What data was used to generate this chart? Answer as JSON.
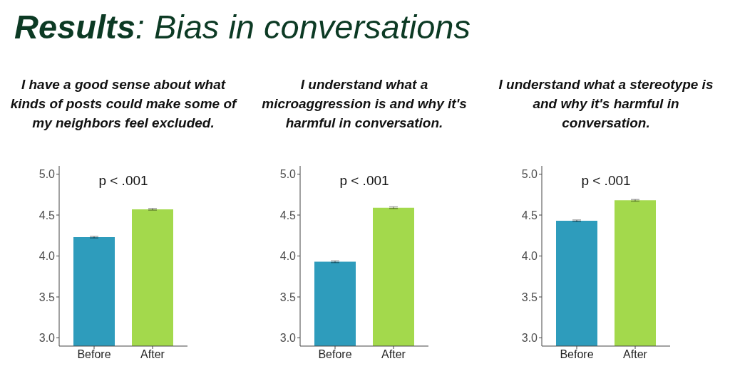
{
  "chart_data": [
    {
      "type": "bar",
      "title": "Results: Bias in conversations",
      "subtitle": "I have a good sense about what\nkinds of posts could make some of\nmy neighbors feel excluded.",
      "categories": [
        "Before",
        "After"
      ],
      "values": [
        4.23,
        4.57
      ],
      "errors": [
        0.01,
        0.01
      ],
      "colors": [
        "#2e9cbc",
        "#a3d94c"
      ],
      "ylim": [
        2.9,
        5.1
      ],
      "yticks": [
        {
          "value": 3,
          "label": "3.0"
        },
        {
          "value": 3.5,
          "label": "3.5"
        },
        {
          "value": 4,
          "label": "4.0"
        },
        {
          "value": 4.5,
          "label": "4.5"
        },
        {
          "value": 5,
          "label": "5.0"
        }
      ],
      "annotations": [
        "p < .001"
      ]
    },
    {
      "type": "bar",
      "subtitle": "I understand what a\nmicroaggression is and why it's\nharmful in conversation.",
      "categories": [
        "Before",
        "After"
      ],
      "values": [
        3.93,
        4.59
      ],
      "errors": [
        0.01,
        0.01
      ],
      "colors": [
        "#2e9cbc",
        "#a3d94c"
      ],
      "ylim": [
        2.9,
        5.1
      ],
      "yticks": [
        {
          "value": 3,
          "label": "3.0"
        },
        {
          "value": 3.5,
          "label": "3.5"
        },
        {
          "value": 4,
          "label": "4.0"
        },
        {
          "value": 4.5,
          "label": "4.5"
        },
        {
          "value": 5,
          "label": "5.0"
        }
      ],
      "annotations": [
        "p < .001"
      ]
    },
    {
      "type": "bar",
      "subtitle": "I understand what a stereotype is\nand why it's harmful in\nconversation.",
      "categories": [
        "Before",
        "After"
      ],
      "values": [
        4.43,
        4.68
      ],
      "errors": [
        0.01,
        0.01
      ],
      "colors": [
        "#2e9cbc",
        "#a3d94c"
      ],
      "ylim": [
        2.9,
        5.1
      ],
      "yticks": [
        {
          "value": 3,
          "label": "3.0"
        },
        {
          "value": 3.5,
          "label": "3.5"
        },
        {
          "value": 4,
          "label": "4.0"
        },
        {
          "value": 4.5,
          "label": "4.5"
        },
        {
          "value": 5,
          "label": "5.0"
        }
      ],
      "annotations": [
        "p < .001"
      ]
    }
  ]
}
